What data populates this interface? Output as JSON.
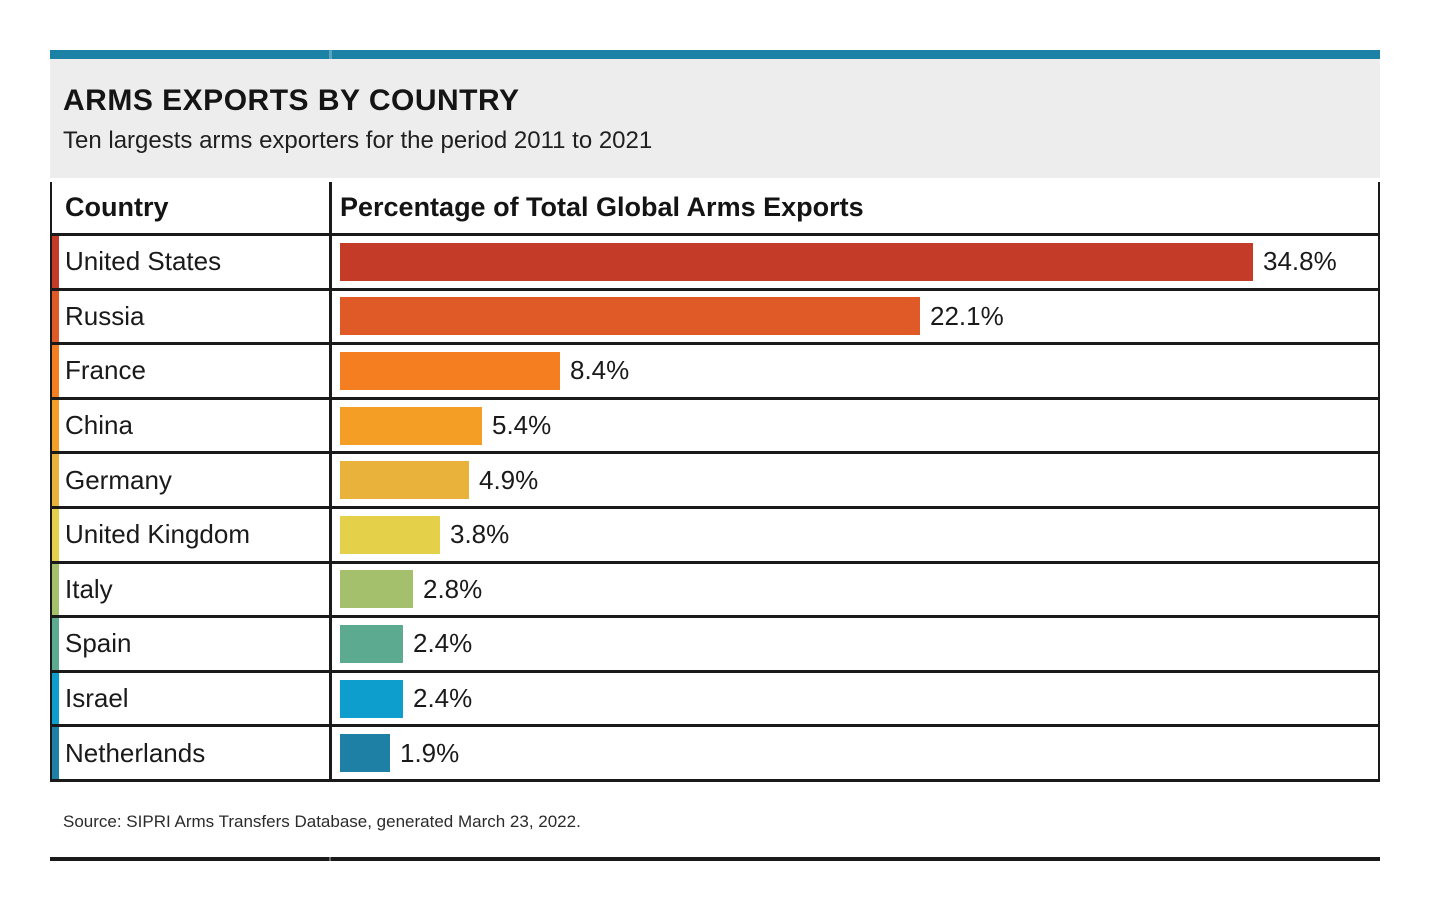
{
  "header": {
    "title": "ARMS EXPORTS BY COUNTRY",
    "subtitle": "Ten largests arms exporters for the period 2011 to 2021",
    "accent_bar_color": "#1b81a5",
    "background_color": "#ededee"
  },
  "table": {
    "columns": [
      "Country",
      "Percentage of Total Global Arms Exports"
    ]
  },
  "chart_data": {
    "type": "bar",
    "orientation": "horizontal",
    "title": "ARMS EXPORTS BY COUNTRY",
    "subtitle": "Ten largests arms exporters for the period 2011 to 2021",
    "xlabel": "Percentage of Total Global Arms Exports",
    "ylabel": "Country",
    "xlim": [
      0,
      36.3
    ],
    "grid": false,
    "legend": false,
    "categories": [
      "United States",
      "Russia",
      "France",
      "China",
      "Germany",
      "United Kingdom",
      "Italy",
      "Spain",
      "Israel",
      "Netherlands"
    ],
    "values": [
      34.8,
      22.1,
      8.4,
      5.4,
      4.9,
      3.8,
      2.8,
      2.4,
      2.4,
      1.9
    ],
    "value_labels": [
      "34.8%",
      "22.1%",
      "8.4%",
      "5.4%",
      "4.9%",
      "3.8%",
      "2.8%",
      "2.4%",
      "2.4%",
      "1.9%"
    ],
    "bar_colors": [
      "#c43b28",
      "#e05a28",
      "#f57e20",
      "#f49e25",
      "#e9b33b",
      "#e5d04a",
      "#a4c06d",
      "#5cab90",
      "#0d9ecd",
      "#1e80a4"
    ]
  },
  "footer": {
    "source": "Source: SIPRI Arms Transfers Database, generated March 23, 2022.",
    "rule_color": "#1a1a1a"
  }
}
